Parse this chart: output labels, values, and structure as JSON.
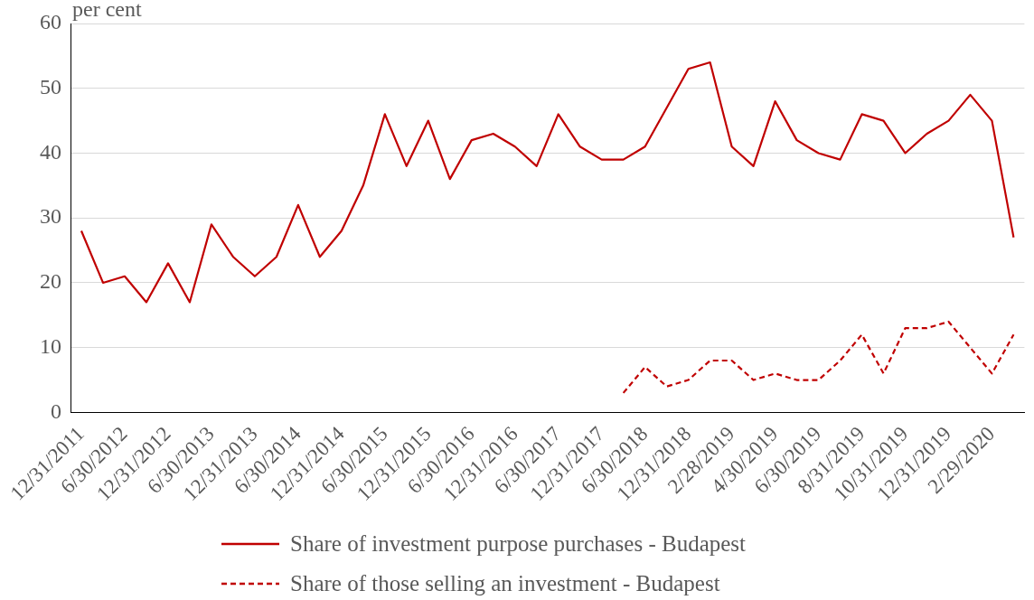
{
  "chart_data": {
    "type": "line",
    "ylabel": "per cent",
    "categories": [
      "12/31/2011",
      null,
      "6/30/2012",
      null,
      "12/31/2012",
      null,
      "6/30/2013",
      null,
      "12/31/2013",
      null,
      "6/30/2014",
      null,
      "12/31/2014",
      null,
      "6/30/2015",
      null,
      "12/31/2015",
      null,
      "6/30/2016",
      null,
      "12/31/2016",
      null,
      "6/30/2017",
      null,
      "12/31/2017",
      null,
      "6/30/2018",
      null,
      "12/31/2018",
      null,
      "2/28/2019",
      null,
      "4/30/2019",
      null,
      "6/30/2019",
      null,
      "8/31/2019",
      null,
      "10/31/2019",
      null,
      "12/31/2019",
      null,
      "2/29/2020",
      null
    ],
    "series": [
      {
        "name": "Share of investment purpose purchases - Budapest",
        "color": "#c00000",
        "line_style": "solid",
        "values": [
          28,
          20,
          21,
          17,
          23,
          17,
          29,
          24,
          21,
          24,
          32,
          24,
          28,
          35,
          46,
          38,
          45,
          36,
          42,
          43,
          41,
          38,
          46,
          41,
          39,
          39,
          41,
          47,
          53,
          54,
          41,
          38,
          48,
          42,
          40,
          39,
          46,
          45,
          40,
          43,
          45,
          49,
          45,
          27
        ]
      },
      {
        "name": "Share of those selling an investment - Budapest",
        "color": "#c00000",
        "line_style": "dashed",
        "values": [
          null,
          null,
          null,
          null,
          null,
          null,
          null,
          null,
          null,
          null,
          null,
          null,
          null,
          null,
          null,
          null,
          null,
          null,
          null,
          null,
          null,
          null,
          null,
          null,
          null,
          3,
          7,
          4,
          5,
          8,
          8,
          5,
          6,
          5,
          5,
          8,
          12,
          6,
          13,
          13,
          14,
          10,
          6,
          12
        ]
      }
    ],
    "ylim": [
      0,
      60
    ],
    "yticks": [
      0,
      10,
      20,
      30,
      40,
      50,
      60
    ],
    "grid": "y",
    "legend": "bottom",
    "marker": "none"
  }
}
